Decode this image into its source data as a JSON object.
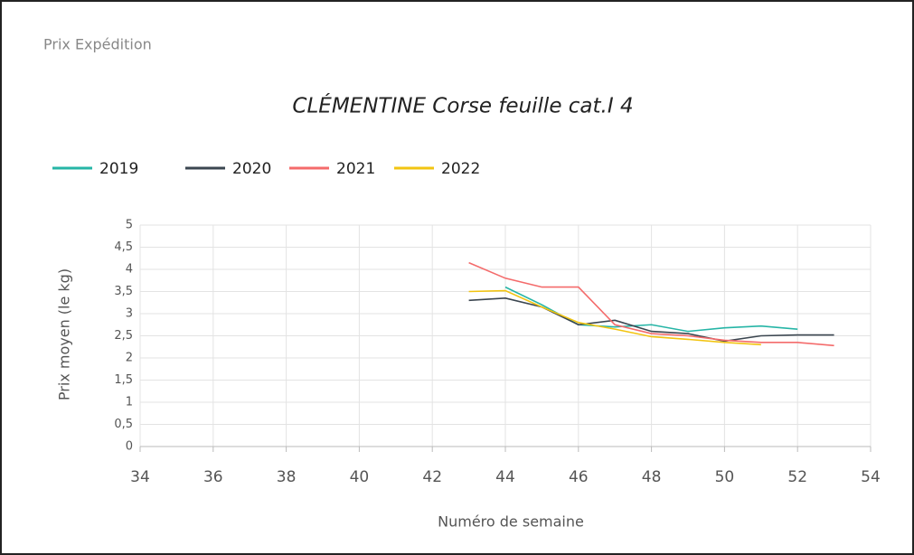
{
  "header": "Prix Expédition",
  "chart_data": {
    "type": "line",
    "title": "CLÉMENTINE Corse feuille cat.I 4",
    "x_label": "Numéro de semaine",
    "y_label": "Prix moyen  (le kg)",
    "xlim": [
      34,
      54
    ],
    "xticks": [
      34,
      36,
      38,
      40,
      42,
      44,
      46,
      48,
      50,
      52,
      54
    ],
    "ylim": [
      0,
      5
    ],
    "yticks": [
      0,
      {
        "value": 0.5,
        "label": "0,5"
      },
      1,
      {
        "value": 1.5,
        "label": "1,5"
      },
      2,
      {
        "value": 2.5,
        "label": "2,5"
      },
      3,
      {
        "value": 3.5,
        "label": "3,5"
      },
      4,
      {
        "value": 4.5,
        "label": "4,5"
      },
      5
    ],
    "grid": true,
    "legend": "top-left",
    "series": [
      {
        "name": "2019",
        "color": "#26b5a6",
        "x": [
          44,
          45,
          46,
          47,
          48,
          49,
          50,
          51,
          52
        ],
        "values": [
          3.6,
          3.2,
          2.75,
          2.7,
          2.75,
          2.6,
          2.68,
          2.72,
          2.65
        ]
      },
      {
        "name": "2020",
        "color": "#3b4650",
        "x": [
          43,
          44,
          45,
          46,
          47,
          48,
          49,
          50,
          51,
          52,
          53
        ],
        "values": [
          3.3,
          3.35,
          3.15,
          2.75,
          2.85,
          2.6,
          2.55,
          2.38,
          2.5,
          2.52,
          2.52
        ]
      },
      {
        "name": "2021",
        "color": "#f46b6b",
        "x": [
          43,
          44,
          45,
          46,
          47,
          48,
          49,
          50,
          51,
          52,
          53
        ],
        "values": [
          4.15,
          3.8,
          3.6,
          3.6,
          2.75,
          2.55,
          2.5,
          2.4,
          2.35,
          2.35,
          2.28
        ]
      },
      {
        "name": "2022",
        "color": "#f2c411",
        "x": [
          43,
          44,
          45,
          46,
          47,
          48,
          49,
          50,
          51
        ],
        "values": [
          3.5,
          3.52,
          3.15,
          2.8,
          2.65,
          2.48,
          2.42,
          2.35,
          2.3
        ]
      }
    ]
  }
}
